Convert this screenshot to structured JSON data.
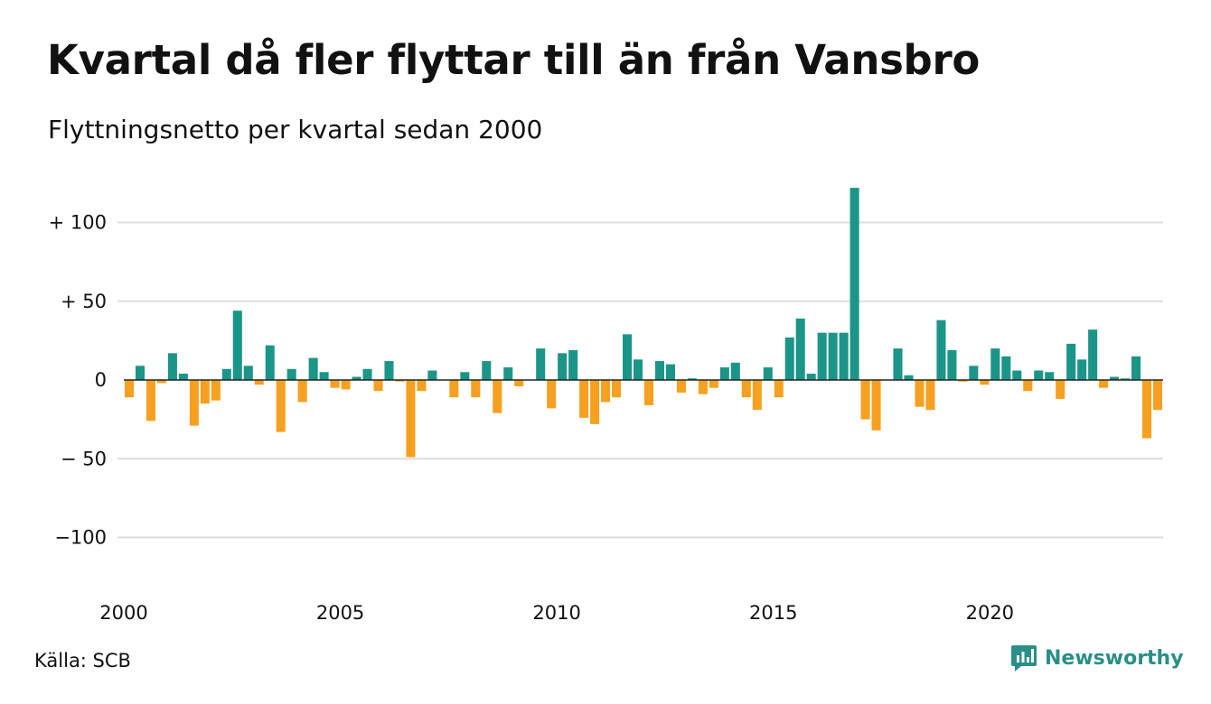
{
  "title": "Kvartal då fler flyttar till än från Vansbro",
  "subtitle": "Flyttningsnetto per kvartal sedan 2000",
  "source": "Källa: SCB",
  "brand": {
    "name": "Newsworthy",
    "icon": "chart-speech-bubble-icon",
    "color": "#2a8f86"
  },
  "chart_data": {
    "type": "bar",
    "start": "2000 Q1",
    "interval": "quarter",
    "ylim": [
      -130,
      135
    ],
    "yticks": [
      {
        "value": 100,
        "label": "+ 100"
      },
      {
        "value": 50,
        "label": "+  50"
      },
      {
        "value": 0,
        "label": "0"
      },
      {
        "value": -50,
        "label": "− 50"
      },
      {
        "value": -100,
        "label": "−100"
      }
    ],
    "xticks": [
      "2000",
      "2005",
      "2010",
      "2015",
      "2020"
    ],
    "grid": true,
    "colors": {
      "positive": "#1b9588",
      "negative": "#f5a020",
      "grid": "#dddddd",
      "zero": "#222222"
    },
    "values": [
      -11,
      9,
      -26,
      -2,
      17,
      4,
      -29,
      -15,
      -13,
      7,
      44,
      9,
      -3,
      22,
      -33,
      7,
      -14,
      14,
      5,
      -5,
      -6,
      2,
      7,
      -7,
      12,
      -1,
      -49,
      -7,
      6,
      0,
      -11,
      5,
      -11,
      12,
      -21,
      8,
      -4,
      0,
      20,
      -18,
      17,
      19,
      -24,
      -28,
      -14,
      -11,
      29,
      13,
      -16,
      12,
      10,
      -8,
      1,
      -9,
      -5,
      8,
      11,
      -11,
      -19,
      8,
      -11,
      27,
      39,
      4,
      30,
      30,
      30,
      122,
      -25,
      -32,
      0,
      20,
      3,
      -17,
      -19,
      38,
      19,
      -1,
      9,
      -3,
      20,
      15,
      6,
      -7,
      6,
      5,
      -12,
      23,
      13,
      32,
      -5,
      2,
      1,
      15,
      -37,
      -19
    ]
  }
}
